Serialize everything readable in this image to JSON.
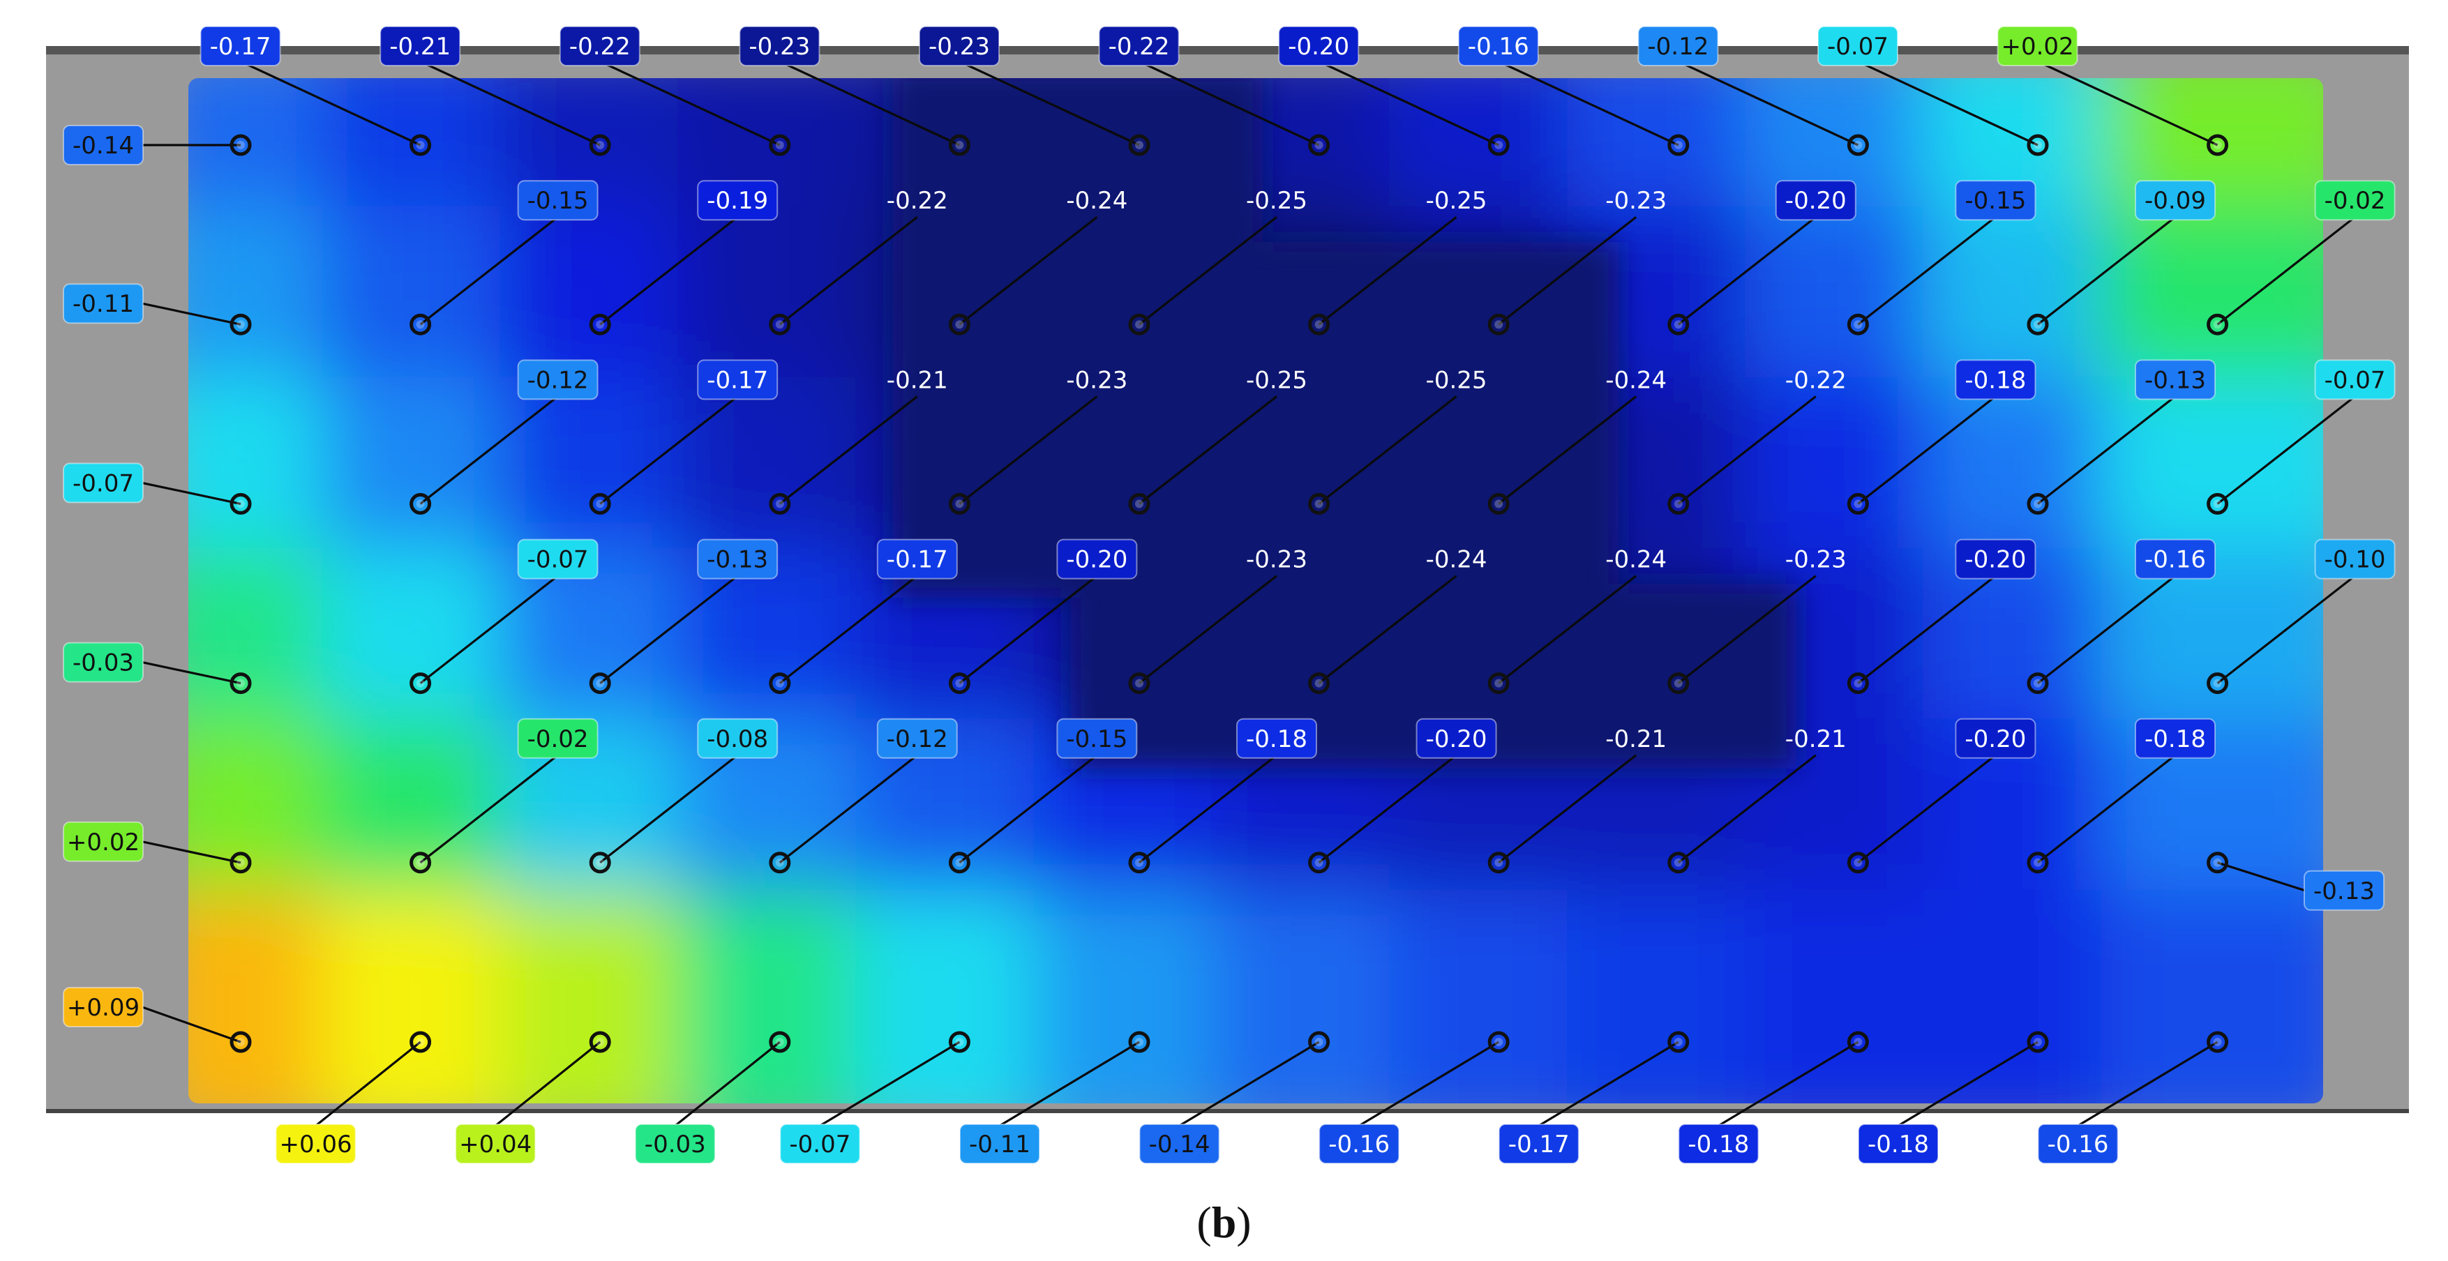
{
  "figure": {
    "caption_open": "(",
    "caption_letter": "b",
    "caption_close": ")"
  },
  "chart_data": {
    "type": "heatmap",
    "title": "",
    "xlabel": "",
    "ylabel": "",
    "grid_columns": 12,
    "grid_rows": 6,
    "colorscale": [
      "#0b1370",
      "#0a1fe0",
      "#1e7ef5",
      "#1fe3ee",
      "#28e63a",
      "#f5f50f",
      "#ff7d10"
    ],
    "rows": [
      [
        "-0.14",
        "-0.17",
        "-0.21",
        "-0.22",
        "-0.23",
        "-0.23",
        "-0.22",
        "-0.20",
        "-0.16",
        "-0.12",
        "-0.07",
        "+0.02"
      ],
      [
        "-0.11",
        "-0.15",
        "-0.19",
        "-0.22",
        "-0.24",
        "-0.25",
        "-0.25",
        "-0.23",
        "-0.20",
        "-0.15",
        "-0.09",
        "-0.02"
      ],
      [
        "-0.07",
        "-0.12",
        "-0.17",
        "-0.21",
        "-0.23",
        "-0.25",
        "-0.25",
        "-0.24",
        "-0.22",
        "-0.18",
        "-0.13",
        "-0.07"
      ],
      [
        "-0.03",
        "-0.07",
        "-0.13",
        "-0.17",
        "-0.20",
        "-0.23",
        "-0.24",
        "-0.24",
        "-0.23",
        "-0.20",
        "-0.16",
        "-0.10"
      ],
      [
        "+0.02",
        "-0.02",
        "-0.08",
        "-0.12",
        "-0.15",
        "-0.18",
        "-0.20",
        "-0.21",
        "-0.21",
        "-0.20",
        "-0.18",
        "-0.13"
      ],
      [
        "+0.09",
        "+0.06",
        "+0.04",
        "-0.03",
        "-0.07",
        "-0.11",
        "-0.14",
        "-0.16",
        "-0.17",
        "-0.18",
        "-0.18",
        "-0.16"
      ]
    ]
  }
}
